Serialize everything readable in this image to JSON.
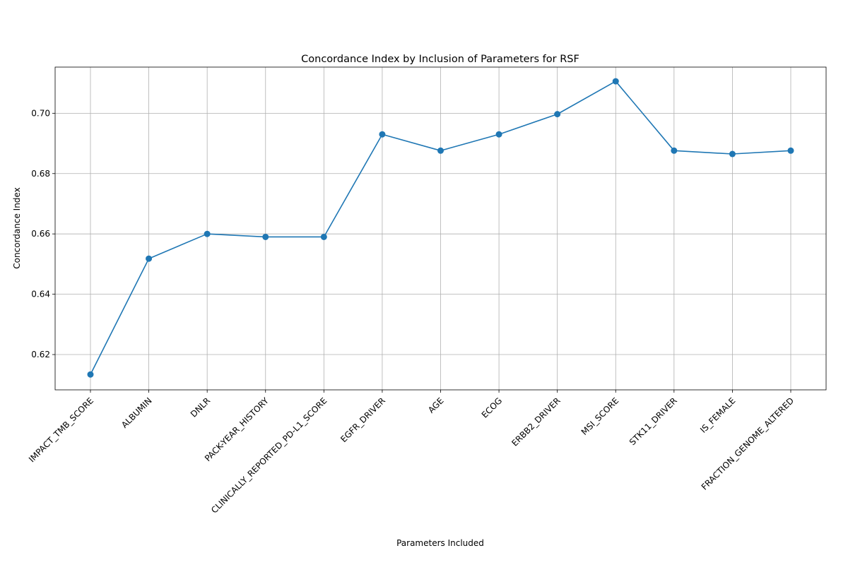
{
  "chart_data": {
    "type": "line",
    "title": "Concordance Index by Inclusion of Parameters for RSF",
    "xlabel": "Parameters Included",
    "ylabel": "Concordance Index",
    "categories": [
      "IMPACT_TMB_SCORE",
      "ALBUMIN",
      "DNLR",
      "PACK-YEAR_HISTORY",
      "CLINICALLY_REPORTED_PD-L1_SCORE",
      "EGFR_DRIVER",
      "AGE",
      "ECOG",
      "ERBB2_DRIVER",
      "MSI_SCORE",
      "STK11_DRIVER",
      "IS_FEMALE",
      "FRACTION_GENOME_ALTERED"
    ],
    "series": [
      {
        "values": [
          0.6134,
          0.6518,
          0.66,
          0.659,
          0.659,
          0.693,
          0.6876,
          0.693,
          0.6997,
          0.7106,
          0.6876,
          0.6865,
          0.6876
        ]
      }
    ],
    "ylim": [
      0.6083,
      0.7153
    ],
    "yticks": [
      "0.62",
      "0.64",
      "0.66",
      "0.68",
      "0.70"
    ],
    "grid": true,
    "legend": "none",
    "line_color": "#1f77b4",
    "marker": "circle",
    "tick_label_rotation": 45
  }
}
